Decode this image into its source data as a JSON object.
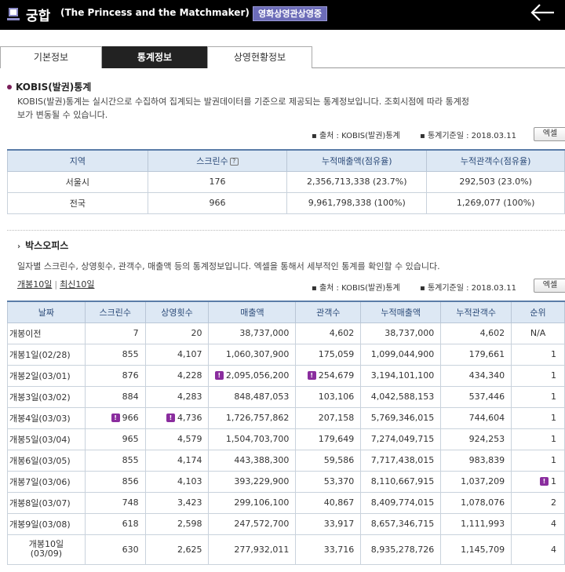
{
  "header": {
    "title_ko": "궁합",
    "title_en": "(The Princess and the Matchmaker)",
    "badge": "영화상영관상영중"
  },
  "tabs": [
    {
      "label": "기본정보",
      "active": false
    },
    {
      "label": "통계정보",
      "active": true
    },
    {
      "label": "상영현황정보",
      "active": false
    }
  ],
  "kobis": {
    "title": "KOBIS(발권)통계",
    "desc_line1": "KOBIS(발권)통계는 실시간으로 수집하여 집계되는 발권데이터를 기준으로 제공되는 통계정보입니다. 조회시점에 따라 통계정",
    "desc_line2": "보가 변동될 수 있습니다.",
    "source": "▪ 출처 : KOBIS(발권)통계",
    "basis": "▪ 통계기준일 : 2018.03.11",
    "excel_label": "엑셀",
    "columns": [
      "지역",
      "스크린수",
      "누적매출액(점유율)",
      "누적관객수(점유율)"
    ],
    "help_icon": "?",
    "rows": [
      {
        "region": "서울시",
        "screens": "176",
        "sales": "2,356,713,338 (23.7%)",
        "audience": "292,503 (23.0%)"
      },
      {
        "region": "전국",
        "screens": "966",
        "sales": "9,961,798,338 (100%)",
        "audience": "1,269,077 (100%)"
      }
    ]
  },
  "boxoffice": {
    "title": "박스오피스",
    "desc": "일자별 스크린수, 상영횟수, 관객수, 매출액 등의 통계정보입니다. 엑셀을 통해서 세부적인 통계를 확인할 수 있습니다.",
    "link_first": "개봉10일",
    "link_sep": "|",
    "link_recent": "최신10일",
    "source": "▪ 출처 : KOBIS(발권)통계",
    "basis": "▪ 통계기준일 : 2018.03.11",
    "excel_label": "엑셀",
    "mark_symbol": "!",
    "columns": [
      "날짜",
      "스크린수",
      "상영횟수",
      "매출액",
      "관객수",
      "누적매출액",
      "누적관객수",
      "순위"
    ],
    "rows": [
      {
        "date": "개봉이전",
        "screens": "7",
        "shows": "20",
        "sales": "38,737,000",
        "audience": "4,602",
        "cum_sales": "38,737,000",
        "cum_audience": "4,602",
        "rank": "N/A",
        "marks": []
      },
      {
        "date": "개봉1일(02/28)",
        "screens": "855",
        "shows": "4,107",
        "sales": "1,060,307,900",
        "audience": "175,059",
        "cum_sales": "1,099,044,900",
        "cum_audience": "179,661",
        "rank": "1",
        "marks": []
      },
      {
        "date": "개봉2일(03/01)",
        "screens": "876",
        "shows": "4,228",
        "sales": "2,095,056,200",
        "audience": "254,679",
        "cum_sales": "3,194,101,100",
        "cum_audience": "434,340",
        "rank": "1",
        "marks": [
          "sales",
          "audience"
        ]
      },
      {
        "date": "개봉3일(03/02)",
        "screens": "884",
        "shows": "4,283",
        "sales": "848,487,053",
        "audience": "103,106",
        "cum_sales": "4,042,588,153",
        "cum_audience": "537,446",
        "rank": "1",
        "marks": []
      },
      {
        "date": "개봉4일(03/03)",
        "screens": "966",
        "shows": "4,736",
        "sales": "1,726,757,862",
        "audience": "207,158",
        "cum_sales": "5,769,346,015",
        "cum_audience": "744,604",
        "rank": "1",
        "marks": [
          "screens",
          "shows"
        ]
      },
      {
        "date": "개봉5일(03/04)",
        "screens": "965",
        "shows": "4,579",
        "sales": "1,504,703,700",
        "audience": "179,649",
        "cum_sales": "7,274,049,715",
        "cum_audience": "924,253",
        "rank": "1",
        "marks": []
      },
      {
        "date": "개봉6일(03/05)",
        "screens": "855",
        "shows": "4,174",
        "sales": "443,388,300",
        "audience": "59,586",
        "cum_sales": "7,717,438,015",
        "cum_audience": "983,839",
        "rank": "1",
        "marks": []
      },
      {
        "date": "개봉7일(03/06)",
        "screens": "856",
        "shows": "4,103",
        "sales": "393,229,900",
        "audience": "53,370",
        "cum_sales": "8,110,667,915",
        "cum_audience": "1,037,209",
        "rank": "1",
        "marks": [
          "rank"
        ]
      },
      {
        "date": "개봉8일(03/07)",
        "screens": "748",
        "shows": "3,423",
        "sales": "299,106,100",
        "audience": "40,867",
        "cum_sales": "8,409,774,015",
        "cum_audience": "1,078,076",
        "rank": "2",
        "marks": []
      },
      {
        "date": "개봉9일(03/08)",
        "screens": "618",
        "shows": "2,598",
        "sales": "247,572,700",
        "audience": "33,917",
        "cum_sales": "8,657,346,715",
        "cum_audience": "1,111,993",
        "rank": "4",
        "marks": []
      },
      {
        "date_line1": "개봉10일",
        "date_line2": "(03/09)",
        "screens": "630",
        "shows": "2,625",
        "sales": "277,932,011",
        "audience": "33,716",
        "cum_sales": "8,935,278,726",
        "cum_audience": "1,145,709",
        "rank": "4",
        "marks": []
      }
    ]
  }
}
